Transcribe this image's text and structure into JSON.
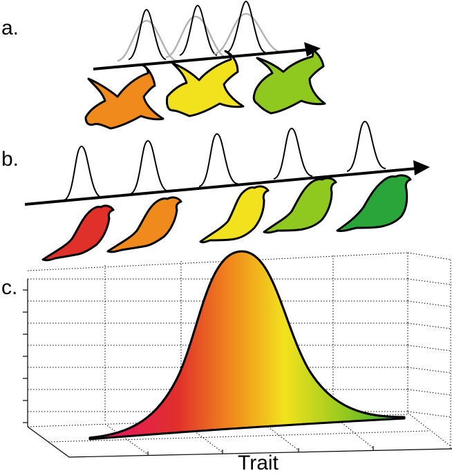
{
  "panels": {
    "a": {
      "label": "a."
    },
    "b": {
      "label": "b."
    },
    "c": {
      "label": "c.",
      "xlabel": "Trait"
    }
  },
  "colors": {
    "red": "#e0302a",
    "orange": "#f08a1c",
    "yellow": "#f2e21e",
    "yellow_green": "#8fc81e",
    "green": "#2aa53a",
    "magenta": "#e8106e"
  }
}
